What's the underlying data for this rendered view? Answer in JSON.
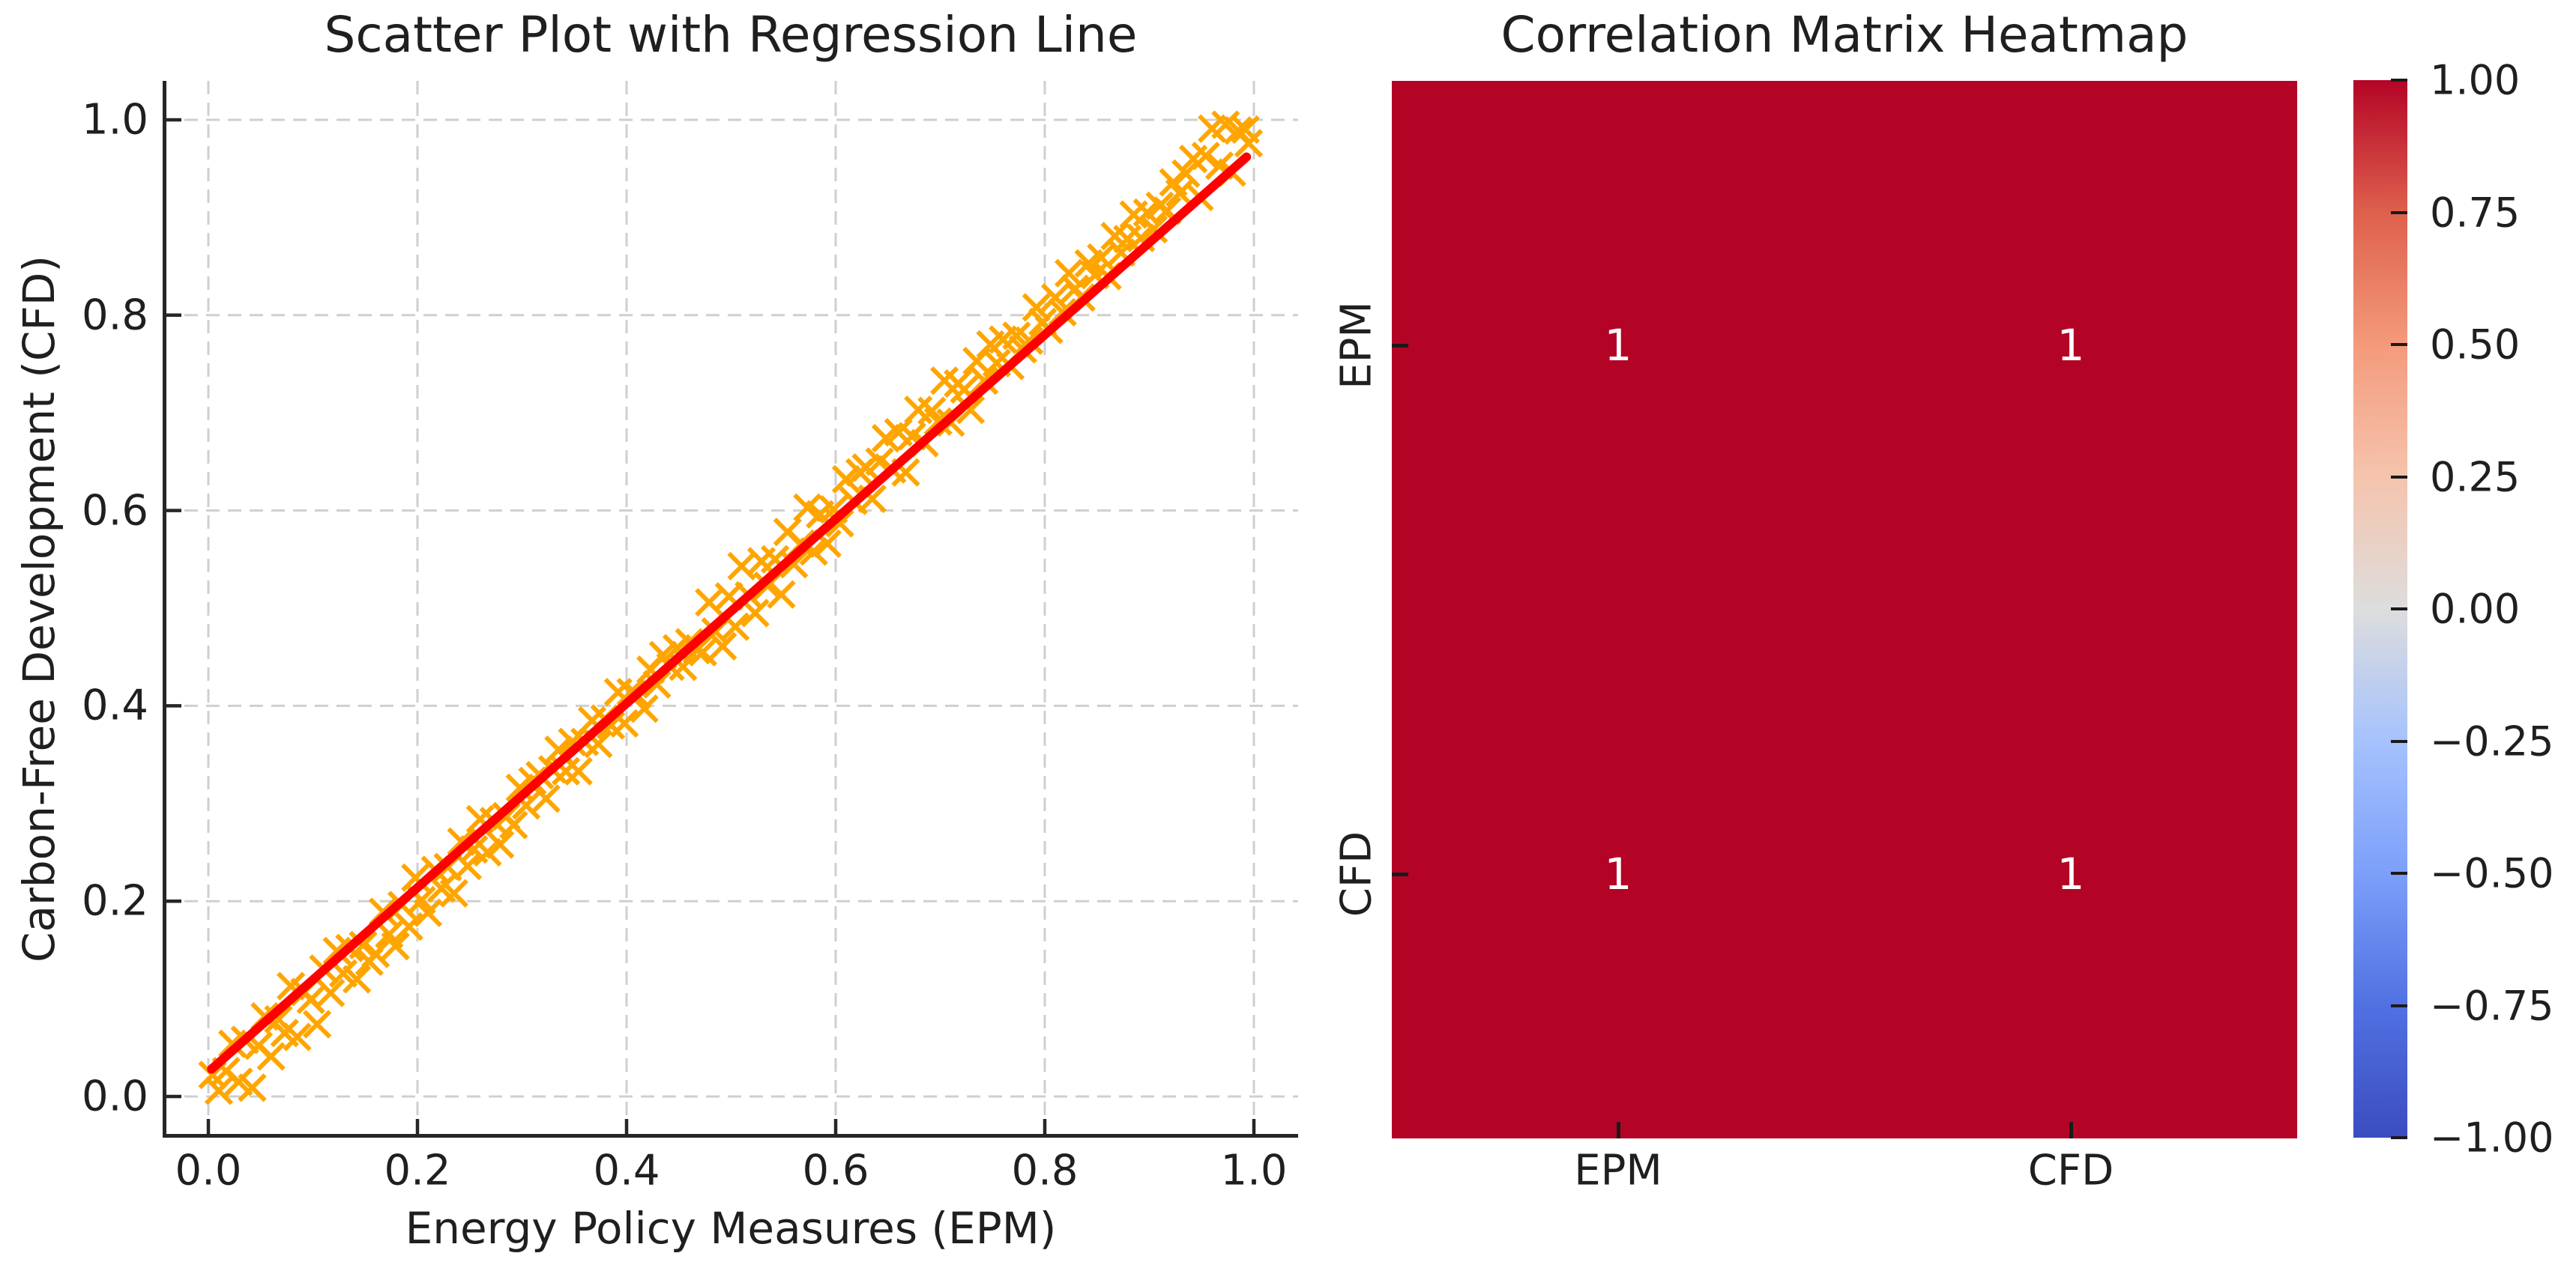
{
  "figure_background": "#ffffff",
  "colors": {
    "text": "#1f1f1f",
    "spine": "#262626",
    "grid": "#cfcfcf",
    "scatter_marker": "#FFA500",
    "regression_line": "#FF0000",
    "heatmap_cell": "#b40426",
    "heatmap_annotation": "#ffffff",
    "tick_mark": "#1a1a1a"
  },
  "chart_data": [
    {
      "type": "scatter",
      "title": "Scatter Plot with Regression Line",
      "xlabel": "Energy Policy Measures (EPM)",
      "ylabel": "Carbon-Free Development (CFD)",
      "xlim": [
        -0.044,
        1.042
      ],
      "ylim": [
        -0.042,
        1.04
      ],
      "x_tick_labels": [
        "0.0",
        "0.2",
        "0.4",
        "0.6",
        "0.8",
        "1.0"
      ],
      "y_tick_labels": [
        "0.0",
        "0.2",
        "0.4",
        "0.6",
        "0.8",
        "1.0"
      ],
      "grid": true,
      "grid_style": "dashed",
      "marker": "x",
      "marker_color": "#FFA500",
      "regression_line": {
        "color": "#FF0000",
        "x1": 0.003,
        "y1": 0.028,
        "x2": 0.993,
        "y2": 0.962
      },
      "points": [
        [
          0.004,
          0.022
        ],
        [
          0.01,
          0.006
        ],
        [
          0.017,
          0.026
        ],
        [
          0.023,
          0.054
        ],
        [
          0.029,
          0.015
        ],
        [
          0.035,
          0.058
        ],
        [
          0.042,
          0.009
        ],
        [
          0.048,
          0.052
        ],
        [
          0.054,
          0.082
        ],
        [
          0.06,
          0.041
        ],
        [
          0.067,
          0.079
        ],
        [
          0.073,
          0.065
        ],
        [
          0.079,
          0.113
        ],
        [
          0.085,
          0.061
        ],
        [
          0.092,
          0.107
        ],
        [
          0.098,
          0.099
        ],
        [
          0.104,
          0.074
        ],
        [
          0.11,
          0.131
        ],
        [
          0.117,
          0.106
        ],
        [
          0.123,
          0.149
        ],
        [
          0.129,
          0.126
        ],
        [
          0.135,
          0.152
        ],
        [
          0.142,
          0.12
        ],
        [
          0.148,
          0.155
        ],
        [
          0.154,
          0.138
        ],
        [
          0.16,
          0.146
        ],
        [
          0.167,
          0.189
        ],
        [
          0.173,
          0.166
        ],
        [
          0.179,
          0.154
        ],
        [
          0.185,
          0.196
        ],
        [
          0.192,
          0.174
        ],
        [
          0.198,
          0.224
        ],
        [
          0.204,
          0.201
        ],
        [
          0.21,
          0.188
        ],
        [
          0.217,
          0.232
        ],
        [
          0.223,
          0.213
        ],
        [
          0.229,
          0.235
        ],
        [
          0.235,
          0.208
        ],
        [
          0.242,
          0.261
        ],
        [
          0.248,
          0.236
        ],
        [
          0.254,
          0.253
        ],
        [
          0.26,
          0.284
        ],
        [
          0.267,
          0.25
        ],
        [
          0.273,
          0.282
        ],
        [
          0.279,
          0.258
        ],
        [
          0.285,
          0.287
        ],
        [
          0.292,
          0.278
        ],
        [
          0.298,
          0.316
        ],
        [
          0.304,
          0.298
        ],
        [
          0.31,
          0.323
        ],
        [
          0.317,
          0.329
        ],
        [
          0.323,
          0.305
        ],
        [
          0.329,
          0.335
        ],
        [
          0.335,
          0.355
        ],
        [
          0.342,
          0.333
        ],
        [
          0.348,
          0.363
        ],
        [
          0.354,
          0.333
        ],
        [
          0.36,
          0.363
        ],
        [
          0.367,
          0.385
        ],
        [
          0.373,
          0.361
        ],
        [
          0.379,
          0.387
        ],
        [
          0.385,
          0.38
        ],
        [
          0.392,
          0.414
        ],
        [
          0.398,
          0.382
        ],
        [
          0.404,
          0.414
        ],
        [
          0.41,
          0.411
        ],
        [
          0.417,
          0.397
        ],
        [
          0.423,
          0.437
        ],
        [
          0.429,
          0.422
        ],
        [
          0.435,
          0.452
        ],
        [
          0.442,
          0.44
        ],
        [
          0.448,
          0.459
        ],
        [
          0.454,
          0.44
        ],
        [
          0.46,
          0.465
        ],
        [
          0.467,
          0.457
        ],
        [
          0.473,
          0.455
        ],
        [
          0.479,
          0.506
        ],
        [
          0.485,
          0.476
        ],
        [
          0.492,
          0.461
        ],
        [
          0.498,
          0.512
        ],
        [
          0.504,
          0.481
        ],
        [
          0.51,
          0.543
        ],
        [
          0.517,
          0.513
        ],
        [
          0.523,
          0.495
        ],
        [
          0.529,
          0.548
        ],
        [
          0.535,
          0.523
        ],
        [
          0.542,
          0.55
        ],
        [
          0.548,
          0.514
        ],
        [
          0.554,
          0.578
        ],
        [
          0.56,
          0.545
        ],
        [
          0.567,
          0.566
        ],
        [
          0.573,
          0.603
        ],
        [
          0.579,
          0.558
        ],
        [
          0.585,
          0.596
        ],
        [
          0.592,
          0.566
        ],
        [
          0.598,
          0.601
        ],
        [
          0.604,
          0.587
        ],
        [
          0.61,
          0.632
        ],
        [
          0.617,
          0.61
        ],
        [
          0.623,
          0.639
        ],
        [
          0.629,
          0.644
        ],
        [
          0.635,
          0.612
        ],
        [
          0.642,
          0.65
        ],
        [
          0.648,
          0.674
        ],
        [
          0.654,
          0.642
        ],
        [
          0.66,
          0.68
        ],
        [
          0.667,
          0.639
        ],
        [
          0.673,
          0.676
        ],
        [
          0.679,
          0.703
        ],
        [
          0.685,
          0.669
        ],
        [
          0.692,
          0.702
        ],
        [
          0.698,
          0.691
        ],
        [
          0.704,
          0.733
        ],
        [
          0.71,
          0.69
        ],
        [
          0.717,
          0.73
        ],
        [
          0.723,
          0.724
        ],
        [
          0.729,
          0.703
        ],
        [
          0.735,
          0.753
        ],
        [
          0.742,
          0.733
        ],
        [
          0.748,
          0.77
        ],
        [
          0.754,
          0.751
        ],
        [
          0.76,
          0.775
        ],
        [
          0.767,
          0.748
        ],
        [
          0.773,
          0.779
        ],
        [
          0.779,
          0.765
        ],
        [
          0.785,
          0.774
        ],
        [
          0.792,
          0.808
        ],
        [
          0.798,
          0.793
        ],
        [
          0.804,
          0.785
        ],
        [
          0.81,
          0.818
        ],
        [
          0.817,
          0.803
        ],
        [
          0.823,
          0.843
        ],
        [
          0.829,
          0.827
        ],
        [
          0.835,
          0.818
        ],
        [
          0.842,
          0.853
        ],
        [
          0.848,
          0.841
        ],
        [
          0.854,
          0.859
        ],
        [
          0.86,
          0.84
        ],
        [
          0.867,
          0.881
        ],
        [
          0.873,
          0.864
        ],
        [
          0.879,
          0.878
        ],
        [
          0.885,
          0.903
        ],
        [
          0.892,
          0.879
        ],
        [
          0.898,
          0.905
        ],
        [
          0.904,
          0.888
        ],
        [
          0.91,
          0.912
        ],
        [
          0.917,
          0.907
        ],
        [
          0.923,
          0.936
        ],
        [
          0.929,
          0.925
        ],
        [
          0.935,
          0.945
        ],
        [
          0.942,
          0.96
        ],
        [
          0.948,
          0.921
        ],
        [
          0.954,
          0.963
        ],
        [
          0.96,
          0.991
        ],
        [
          0.967,
          0.953
        ],
        [
          0.973,
          0.995
        ],
        [
          0.979,
          0.946
        ],
        [
          0.985,
          0.989
        ],
        [
          0.992,
          0.99
        ],
        [
          0.995,
          0.976
        ]
      ]
    },
    {
      "type": "heatmap",
      "title": "Correlation Matrix Heatmap",
      "x_labels": [
        "EPM",
        "CFD"
      ],
      "y_labels": [
        "EPM",
        "CFD"
      ],
      "values": [
        [
          1,
          1
        ],
        [
          1,
          1
        ]
      ],
      "cell_color": "#b40426",
      "annotation_color": "#ffffff",
      "colorbar": {
        "range": [
          -1,
          1
        ],
        "tick_labels": [
          "1.00",
          "0.75",
          "0.50",
          "0.25",
          "0.00",
          "−0.25",
          "−0.50",
          "−0.75",
          "−1.00"
        ],
        "gradient_stops": [
          "#b40426",
          "#de604d",
          "#f49a7b",
          "#f5c4ad",
          "#dddddd",
          "#a6c2fd",
          "#7c9ff9",
          "#5171e2",
          "#3b4cc0"
        ]
      }
    }
  ]
}
